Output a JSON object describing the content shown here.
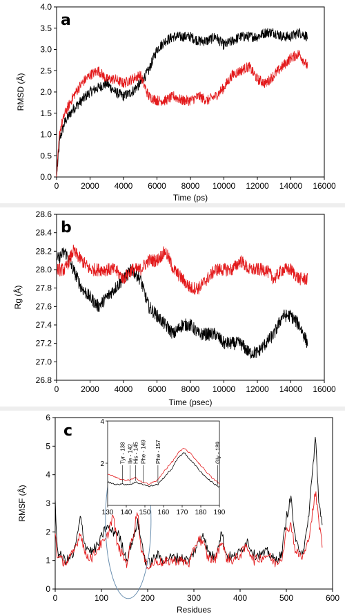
{
  "chart_data": [
    {
      "type": "line",
      "panel": "a",
      "xlabel": "Time (ps)",
      "ylabel": "RMSD (Å)",
      "xlim": [
        0,
        16000
      ],
      "ylim": [
        0,
        4.0
      ],
      "xticks": [
        "0",
        "2000",
        "4000",
        "6000",
        "8000",
        "10000",
        "12000",
        "14000",
        "16000"
      ],
      "yticks": [
        "0.0",
        "0.5",
        "1.0",
        "1.5",
        "2.0",
        "2.5",
        "3.0",
        "3.5",
        "4.0"
      ],
      "colors": [
        "#000000",
        "#e31a1c"
      ],
      "series": [
        {
          "x": [
            0,
            200,
            500,
            1000,
            1500,
            2000,
            2500,
            3000,
            3500,
            4000,
            4500,
            5000,
            5500,
            6000,
            6500,
            7000,
            7500,
            8000,
            8500,
            9000,
            9500,
            10000,
            10500,
            11000,
            11500,
            12000,
            12500,
            13000,
            13500,
            14000,
            14500,
            15000
          ],
          "values": [
            0.0,
            0.9,
            1.3,
            1.6,
            1.8,
            2.0,
            2.1,
            2.2,
            2.0,
            1.9,
            2.0,
            2.2,
            2.5,
            3.0,
            3.2,
            3.3,
            3.3,
            3.3,
            3.2,
            3.2,
            3.3,
            3.1,
            3.2,
            3.3,
            3.3,
            3.3,
            3.4,
            3.4,
            3.3,
            3.3,
            3.4,
            3.3
          ]
        },
        {
          "x": [
            0,
            200,
            500,
            1000,
            1500,
            2000,
            2500,
            3000,
            3500,
            4000,
            4500,
            5000,
            5500,
            6000,
            6500,
            7000,
            7500,
            8000,
            8500,
            9000,
            9500,
            10000,
            10500,
            11000,
            11500,
            12000,
            12500,
            13000,
            13500,
            14000,
            14500,
            15000
          ],
          "values": [
            0.0,
            1.1,
            1.5,
            1.9,
            2.2,
            2.4,
            2.5,
            2.3,
            2.3,
            2.2,
            2.3,
            2.4,
            1.9,
            1.8,
            1.8,
            1.9,
            1.8,
            1.8,
            1.9,
            1.8,
            1.9,
            2.1,
            2.4,
            2.5,
            2.6,
            2.3,
            2.2,
            2.4,
            2.6,
            2.8,
            2.9,
            2.6
          ]
        }
      ]
    },
    {
      "type": "line",
      "panel": "b",
      "xlabel": "Time (psec)",
      "ylabel": "Rg (Å)",
      "xlim": [
        0,
        16000
      ],
      "ylim": [
        26.8,
        28.6
      ],
      "xticks": [
        "0",
        "2000",
        "4000",
        "6000",
        "8000",
        "10000",
        "12000",
        "14000",
        "16000"
      ],
      "yticks": [
        "26.8",
        "27.0",
        "27.2",
        "27.4",
        "27.6",
        "27.8",
        "28.0",
        "28.2",
        "28.4",
        "28.6"
      ],
      "colors": [
        "#000000",
        "#e31a1c"
      ],
      "series": [
        {
          "x": [
            0,
            500,
            1000,
            1500,
            2000,
            2500,
            3000,
            3500,
            4000,
            4500,
            5000,
            5500,
            6000,
            6500,
            7000,
            7500,
            8000,
            8500,
            9000,
            9500,
            10000,
            10500,
            11000,
            11500,
            12000,
            12500,
            13000,
            13500,
            14000,
            14500,
            15000
          ],
          "values": [
            28.1,
            28.2,
            28.0,
            27.8,
            27.7,
            27.6,
            27.7,
            27.8,
            27.9,
            28.0,
            27.9,
            27.6,
            27.5,
            27.4,
            27.3,
            27.4,
            27.4,
            27.3,
            27.3,
            27.3,
            27.2,
            27.2,
            27.2,
            27.1,
            27.1,
            27.2,
            27.3,
            27.5,
            27.5,
            27.4,
            27.2
          ]
        },
        {
          "x": [
            0,
            500,
            1000,
            1500,
            2000,
            2500,
            3000,
            3500,
            4000,
            4500,
            5000,
            5500,
            6000,
            6500,
            7000,
            7500,
            8000,
            8500,
            9000,
            9500,
            10000,
            10500,
            11000,
            11500,
            12000,
            12500,
            13000,
            13500,
            14000,
            14500,
            15000
          ],
          "values": [
            28.0,
            28.0,
            28.2,
            28.1,
            28.0,
            28.0,
            28.0,
            28.0,
            27.9,
            28.0,
            28.0,
            28.1,
            28.1,
            28.2,
            28.0,
            27.9,
            27.8,
            27.8,
            27.9,
            28.0,
            28.0,
            28.0,
            28.1,
            28.0,
            28.0,
            28.0,
            27.9,
            28.0,
            28.0,
            27.9,
            27.9
          ]
        }
      ]
    },
    {
      "type": "line",
      "panel": "c",
      "xlabel": "Residues",
      "ylabel": "RMSF (Å)",
      "xlim": [
        0,
        600
      ],
      "ylim": [
        0,
        6
      ],
      "xticks": [
        "0",
        "100",
        "200",
        "300",
        "400",
        "500",
        "600"
      ],
      "yticks": [
        "0",
        "1",
        "2",
        "3",
        "4",
        "5",
        "6"
      ],
      "colors": [
        "#000000",
        "#e31a1c"
      ],
      "annotation": "ellipse around residues ~125-195",
      "series": [
        {
          "x": [
            0,
            5,
            15,
            25,
            40,
            55,
            65,
            80,
            95,
            110,
            125,
            135,
            145,
            155,
            160,
            170,
            178,
            185,
            195,
            205,
            220,
            235,
            250,
            270,
            290,
            310,
            320,
            330,
            345,
            360,
            370,
            385,
            400,
            415,
            430,
            445,
            460,
            475,
            490,
            500,
            510,
            520,
            535,
            545,
            555,
            563,
            570,
            578
          ],
          "values": [
            3.0,
            1.3,
            1.1,
            1.0,
            1.2,
            2.5,
            1.5,
            1.3,
            1.6,
            2.2,
            2.0,
            2.0,
            1.5,
            1.0,
            1.4,
            1.8,
            2.4,
            1.8,
            1.0,
            0.9,
            1.2,
            1.0,
            1.1,
            1.1,
            1.0,
            1.6,
            2.0,
            1.3,
            1.1,
            2.0,
            1.2,
            1.1,
            1.3,
            1.7,
            1.2,
            1.2,
            1.3,
            1.0,
            1.2,
            2.5,
            3.2,
            1.6,
            1.3,
            2.0,
            3.8,
            5.4,
            3.0,
            2.3
          ]
        },
        {
          "x": [
            0,
            5,
            15,
            25,
            40,
            55,
            65,
            80,
            95,
            110,
            125,
            135,
            145,
            155,
            160,
            170,
            178,
            185,
            195,
            205,
            220,
            235,
            250,
            270,
            290,
            310,
            320,
            330,
            345,
            360,
            370,
            385,
            400,
            415,
            430,
            445,
            460,
            475,
            490,
            500,
            510,
            520,
            535,
            545,
            555,
            563,
            570,
            578
          ],
          "values": [
            2.0,
            1.1,
            1.0,
            0.9,
            1.3,
            2.0,
            1.2,
            1.1,
            1.5,
            1.7,
            2.6,
            1.5,
            1.2,
            0.9,
            1.3,
            2.0,
            2.8,
            1.5,
            0.9,
            0.8,
            1.0,
            0.9,
            1.0,
            1.0,
            0.9,
            1.8,
            1.6,
            1.1,
            1.0,
            1.7,
            1.1,
            1.0,
            1.2,
            1.5,
            1.0,
            1.1,
            1.2,
            0.9,
            1.1,
            2.0,
            2.3,
            1.3,
            1.1,
            1.5,
            2.5,
            3.4,
            2.4,
            1.5
          ]
        }
      ],
      "inset": {
        "xlim": [
          130,
          190
        ],
        "ylim": [
          0,
          4
        ],
        "xticks": [
          "130",
          "140",
          "150",
          "160",
          "170",
          "180",
          "190"
        ],
        "yticks": [
          "2",
          "4"
        ],
        "residue_labels": [
          "Tyr - 138",
          "Ile - 142",
          "His - 145",
          "Phe - 149",
          "Phe - 157",
          "Gly - 189"
        ],
        "series": [
          {
            "x": [
              130,
              135,
              138,
              142,
              145,
              149,
              152,
              157,
              160,
              165,
              168,
              171,
              174,
              178,
              182,
              186,
              189,
              190
            ],
            "values": [
              1.1,
              1.0,
              1.0,
              1.0,
              1.1,
              1.0,
              0.9,
              1.0,
              1.3,
              1.8,
              2.3,
              2.5,
              2.2,
              1.8,
              1.4,
              1.1,
              0.9,
              0.9
            ]
          },
          {
            "x": [
              130,
              135,
              138,
              142,
              145,
              149,
              152,
              157,
              160,
              165,
              168,
              171,
              174,
              178,
              182,
              186,
              189,
              190
            ],
            "values": [
              1.5,
              1.3,
              1.2,
              1.2,
              1.3,
              1.1,
              1.0,
              1.2,
              1.6,
              2.1,
              2.5,
              2.7,
              2.5,
              2.1,
              1.7,
              1.3,
              1.1,
              1.0
            ]
          }
        ]
      }
    }
  ]
}
